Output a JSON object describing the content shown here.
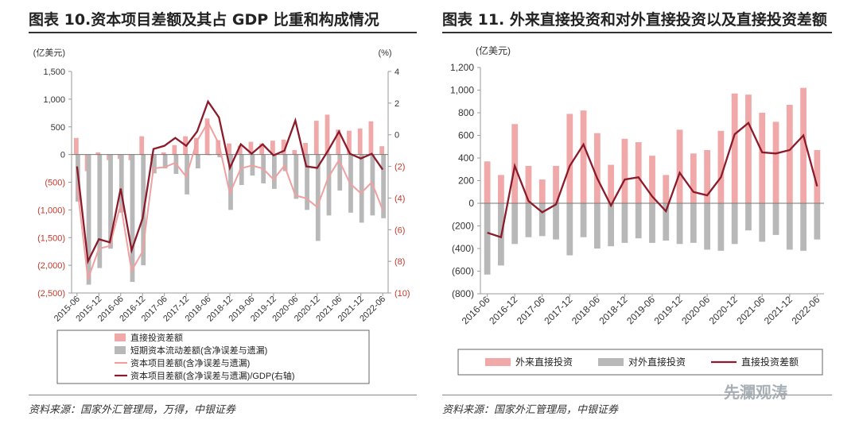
{
  "left": {
    "title": "图表 10.资本项目差额及其占 GDP 比重和构成情况",
    "source": "资料来源：国家外汇管理局，万得，中银证券",
    "chart_data": {
      "type": "bar",
      "yunit_left": "(亿美元)",
      "yunit_right": "(%)",
      "ylim_left": [
        -2500,
        1500
      ],
      "ylim_right": [
        -10,
        4
      ],
      "yticks_left": [
        1500,
        1000,
        500,
        0,
        -500,
        -1000,
        -1500,
        -2000,
        -2500
      ],
      "yticklabels_left": [
        "1,500",
        "1,000",
        "500",
        "0",
        "(500)",
        "(1,000)",
        "(1,500)",
        "(2,000)",
        "(2,500)"
      ],
      "yticks_right": [
        4,
        2,
        0,
        -2,
        -4,
        -6,
        -8,
        -10
      ],
      "yticklabels_right": [
        "4",
        "2",
        "0",
        "(2)",
        "(4)",
        "(6)",
        "(8)",
        "(10)"
      ],
      "categories": [
        "2015-06",
        "2015-09",
        "2015-12",
        "2016-03",
        "2016-06",
        "2016-09",
        "2016-12",
        "2017-03",
        "2017-06",
        "2017-09",
        "2017-12",
        "2018-03",
        "2018-06",
        "2018-09",
        "2018-12",
        "2019-03",
        "2019-06",
        "2019-09",
        "2019-12",
        "2020-03",
        "2020-06",
        "2020-09",
        "2020-12",
        "2021-03",
        "2021-06",
        "2021-09",
        "2021-12",
        "2022-03",
        "2022-06"
      ],
      "xticklabels": [
        "2015-06",
        "2015-12",
        "2016-06",
        "2016-12",
        "2017-06",
        "2017-12",
        "2018-06",
        "2018-12",
        "2019-06",
        "2019-12",
        "2020-06",
        "2020-12",
        "2021-06",
        "2021-12",
        "2022-06"
      ],
      "series": [
        {
          "name": "直接投资差额",
          "kind": "bar",
          "color": "#f0a8a8",
          "values": [
            300,
            -300,
            40,
            -100,
            -80,
            -100,
            330,
            -100,
            40,
            170,
            330,
            300,
            650,
            260,
            200,
            160,
            230,
            200,
            250,
            270,
            80,
            210,
            610,
            720,
            450,
            430,
            470,
            600,
            150
          ]
        },
        {
          "name": "短期资本流动差额(含净误差与遗漏)",
          "kind": "bar",
          "color": "#b8b8b8",
          "values": [
            -850,
            -2350,
            -2050,
            -1700,
            -1050,
            -2300,
            -2000,
            -340,
            -250,
            -350,
            -720,
            -250,
            -10,
            -50,
            -1000,
            -550,
            -380,
            -520,
            -620,
            -300,
            -800,
            -1000,
            -1560,
            -1100,
            -650,
            -1050,
            -1230,
            -1100,
            -1150
          ]
        },
        {
          "name": "资本项目差额(含净误差与遗漏)",
          "kind": "line",
          "color": "#f0a0a0",
          "values": [
            -550,
            -2250,
            -1700,
            -1650,
            -900,
            -2100,
            -1750,
            -250,
            -230,
            -150,
            -400,
            250,
            580,
            190,
            -700,
            -250,
            -200,
            -250,
            -450,
            -200,
            -740,
            -790,
            -950,
            -420,
            -100,
            -520,
            -700,
            -500,
            -1000
          ]
        },
        {
          "name": "资本项目差额(含净误差与遗漏)/GDP(右轴)",
          "kind": "line",
          "axis": "right",
          "color": "#8b1a2a",
          "values": [
            -2.0,
            -8.0,
            -6.6,
            -6.8,
            -3.4,
            -7.3,
            -5.3,
            -0.9,
            -0.7,
            -0.2,
            -0.7,
            0.2,
            2.1,
            1.1,
            -2.1,
            -0.6,
            -1.2,
            -0.6,
            -1.3,
            -1.0,
            0.9,
            -2.0,
            -2.1,
            -1.0,
            0.2,
            -1.2,
            -1.5,
            -1.2,
            -2.2
          ]
        }
      ]
    }
  },
  "right": {
    "title": "图表 11. 外来直接投资和对外直接投资以及直接投资差额",
    "source": "资料来源：国家外汇管理局，中银证券",
    "chart_data": {
      "type": "bar",
      "yunit": "(亿美元)",
      "ylim": [
        -800,
        1200
      ],
      "yticks": [
        1200,
        1000,
        800,
        600,
        400,
        200,
        0,
        -200,
        -400,
        -600,
        -800
      ],
      "yticklabels": [
        "1,200",
        "1,000",
        "800",
        "600",
        "400",
        "200",
        "0",
        "(200)",
        "(400)",
        "(600)",
        "(800)"
      ],
      "categories": [
        "2016-06",
        "2016-09",
        "2016-12",
        "2017-03",
        "2017-06",
        "2017-09",
        "2017-12",
        "2018-03",
        "2018-06",
        "2018-09",
        "2018-12",
        "2019-03",
        "2019-06",
        "2019-09",
        "2019-12",
        "2020-03",
        "2020-06",
        "2020-09",
        "2020-12",
        "2021-03",
        "2021-06",
        "2021-09",
        "2021-12",
        "2022-03",
        "2022-06"
      ],
      "xticklabels": [
        "2016-06",
        "2016-12",
        "2017-06",
        "2017-12",
        "2018-06",
        "2018-12",
        "2019-06",
        "2019-12",
        "2020-06",
        "2020-12",
        "2021-06",
        "2021-12",
        "2022-06"
      ],
      "series": [
        {
          "name": "外来直接投资",
          "kind": "bar",
          "color": "#f0a8a8",
          "values": [
            370,
            250,
            700,
            330,
            210,
            330,
            790,
            820,
            620,
            340,
            570,
            540,
            420,
            250,
            650,
            440,
            470,
            640,
            970,
            960,
            800,
            720,
            870,
            1020,
            470
          ]
        },
        {
          "name": "对外直接投资",
          "kind": "bar",
          "color": "#b8b8b8",
          "values": [
            -630,
            -550,
            -360,
            -300,
            -290,
            -320,
            -460,
            -300,
            -400,
            -380,
            -350,
            -310,
            -350,
            -330,
            -360,
            -350,
            -410,
            -420,
            -360,
            -240,
            -340,
            -280,
            -410,
            -420,
            -320
          ]
        },
        {
          "name": "直接投资差额",
          "kind": "line",
          "color": "#8b1a2a",
          "values": [
            -260,
            -300,
            330,
            20,
            -80,
            -10,
            330,
            520,
            220,
            -20,
            210,
            230,
            60,
            -70,
            270,
            100,
            70,
            230,
            610,
            710,
            450,
            440,
            470,
            600,
            150
          ]
        }
      ]
    }
  },
  "watermark": "先瀾观涛"
}
